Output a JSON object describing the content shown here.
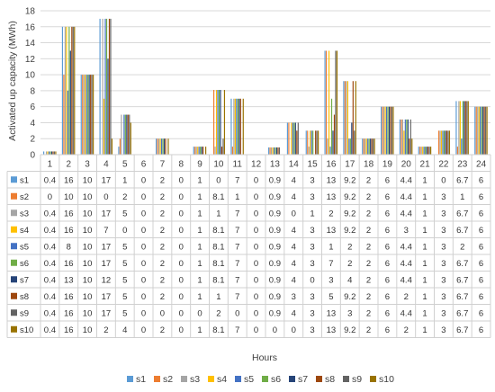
{
  "chart_data": {
    "type": "bar",
    "ylabel": "Activated up capacity (MWh)",
    "xlabel": "Hours",
    "ylim": [
      0,
      18
    ],
    "yticks": [
      0,
      2,
      4,
      6,
      8,
      10,
      12,
      14,
      16,
      18
    ],
    "grid": true,
    "legend_position": "bottom",
    "data_table": true,
    "categories": [
      "1",
      "2",
      "3",
      "4",
      "5",
      "6",
      "7",
      "8",
      "9",
      "10",
      "11",
      "12",
      "13",
      "14",
      "15",
      "16",
      "17",
      "18",
      "19",
      "20",
      "21",
      "22",
      "23",
      "24"
    ],
    "series": [
      {
        "name": "s1",
        "color": "#5b9bd5",
        "values": [
          0.4,
          16,
          10,
          17,
          1,
          0,
          2,
          0,
          1,
          0,
          7,
          0,
          0.9,
          4,
          3,
          13,
          9.2,
          2,
          6,
          4.4,
          1,
          0,
          6.7,
          6
        ]
      },
      {
        "name": "s2",
        "color": "#ed7d31",
        "values": [
          0,
          10,
          10,
          0,
          2,
          0,
          2,
          0,
          1,
          8.1,
          1,
          0,
          0.9,
          4,
          3,
          13,
          9.2,
          2,
          6,
          4.4,
          1,
          3,
          1,
          6
        ]
      },
      {
        "name": "s3",
        "color": "#a5a5a5",
        "values": [
          0.4,
          16,
          10,
          17,
          5,
          0,
          2,
          0,
          1,
          1,
          7,
          0,
          0.9,
          0,
          1,
          2,
          9.2,
          2,
          6,
          4.4,
          1,
          3,
          6.7,
          6
        ]
      },
      {
        "name": "s4",
        "color": "#ffc000",
        "values": [
          0.4,
          16,
          10,
          7,
          0,
          0,
          2,
          0,
          1,
          8.1,
          7,
          0,
          0.9,
          4,
          3,
          13,
          9.2,
          2,
          6,
          3,
          1,
          3,
          6.7,
          6
        ]
      },
      {
        "name": "s5",
        "color": "#4472c4",
        "values": [
          0.4,
          8,
          10,
          17,
          5,
          0,
          2,
          0,
          1,
          8.1,
          7,
          0,
          0.9,
          4,
          3,
          1,
          2,
          2,
          6,
          4.4,
          1,
          3,
          2,
          6
        ]
      },
      {
        "name": "s6",
        "color": "#70ad47",
        "values": [
          0.4,
          16,
          10,
          17,
          5,
          0,
          2,
          0,
          1,
          8.1,
          7,
          0,
          0.9,
          4,
          3,
          7,
          2,
          2,
          6,
          4.4,
          1,
          3,
          6.7,
          6
        ]
      },
      {
        "name": "s7",
        "color": "#264478",
        "values": [
          0.4,
          13,
          10,
          12,
          5,
          0,
          2,
          0,
          1,
          8.1,
          7,
          0,
          0.9,
          4,
          0,
          3,
          4,
          2,
          6,
          4.4,
          1,
          3,
          6.7,
          6
        ]
      },
      {
        "name": "s8",
        "color": "#9e480e",
        "values": [
          0.4,
          16,
          10,
          17,
          5,
          0,
          2,
          0,
          1,
          1,
          7,
          0,
          0.9,
          3,
          3,
          5,
          9.2,
          2,
          6,
          2,
          1,
          3,
          6.7,
          6
        ]
      },
      {
        "name": "s9",
        "color": "#636363",
        "values": [
          0.4,
          16,
          10,
          17,
          5,
          0,
          0,
          0,
          0,
          2,
          0,
          0,
          0.9,
          4,
          3,
          13,
          3,
          2,
          6,
          4.4,
          1,
          3,
          6.7,
          6
        ]
      },
      {
        "name": "s10",
        "color": "#997300",
        "values": [
          0.4,
          16,
          10,
          2,
          4,
          0,
          2,
          0,
          1,
          8.1,
          7,
          0,
          0,
          0,
          3,
          13,
          9.2,
          2,
          6,
          2,
          1,
          3,
          6.7,
          6
        ]
      }
    ]
  }
}
